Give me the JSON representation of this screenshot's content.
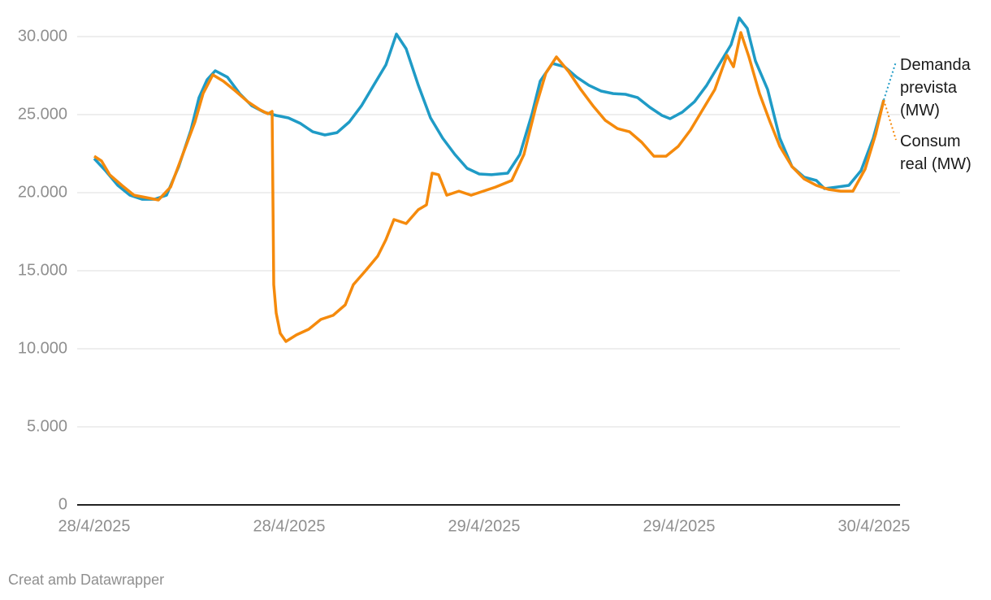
{
  "chart_data": {
    "type": "line",
    "credit": "Creat amb Datawrapper",
    "xlim": [
      -1.05,
      49.6
    ],
    "xticks": [
      {
        "value": 0,
        "label": "28/4/2025"
      },
      {
        "value": 12,
        "label": "28/4/2025"
      },
      {
        "value": 24,
        "label": "29/4/2025"
      },
      {
        "value": 36,
        "label": "29/4/2025"
      },
      {
        "value": 48,
        "label": "30/4/2025"
      }
    ],
    "ylim": [
      0,
      32000
    ],
    "yticks": [
      0,
      {
        "value": 5000,
        "label": "5.000"
      },
      {
        "value": 10000,
        "label": "10.000"
      },
      {
        "value": 15000,
        "label": "15.000"
      },
      {
        "value": 20000,
        "label": "20.000"
      },
      {
        "value": 25000,
        "label": "25.000"
      },
      {
        "value": 30000,
        "label": "30.000"
      }
    ],
    "grid": true,
    "series": [
      {
        "name": "Demanda prevista (MW)",
        "color": "#1f9bc6",
        "x": [
          0,
          0.7,
          1.45,
          2.2,
          2.95,
          3.7,
          4.45,
          5.2,
          5.95,
          6.45,
          6.95,
          7.45,
          8.2,
          8.95,
          9.7,
          10.45,
          11.2,
          11.95,
          12.7,
          13.45,
          14.2,
          14.95,
          15.7,
          16.45,
          17.2,
          17.95,
          18.6,
          19.2,
          19.95,
          20.7,
          21.45,
          22.2,
          22.95,
          23.7,
          24.45,
          25.45,
          26.2,
          26.95,
          27.45,
          28.2,
          28.95,
          29.7,
          30.45,
          31.2,
          31.95,
          32.7,
          33.45,
          34.2,
          34.95,
          35.45,
          36.2,
          36.95,
          37.7,
          38.45,
          39.2,
          39.7,
          40.2,
          40.7,
          41.45,
          42.2,
          42.95,
          43.7,
          44.45,
          44.95,
          45.7,
          46.45,
          47.2,
          47.95,
          48.6
        ],
        "values": [
          22190,
          21400,
          20470,
          19840,
          19580,
          19580,
          19840,
          21670,
          24010,
          26090,
          27240,
          27810,
          27400,
          26350,
          25570,
          25160,
          24950,
          24790,
          24430,
          23900,
          23700,
          23850,
          24530,
          25570,
          26880,
          28180,
          30160,
          29220,
          26880,
          24790,
          23490,
          22450,
          21560,
          21200,
          21150,
          21250,
          22450,
          25050,
          27140,
          28280,
          28070,
          27400,
          26880,
          26510,
          26350,
          26300,
          26090,
          25470,
          24950,
          24740,
          25160,
          25830,
          26880,
          28180,
          29480,
          31200,
          30520,
          28440,
          26610,
          23490,
          21670,
          20990,
          20780,
          20260,
          20360,
          20470,
          21410,
          23490,
          25940
        ]
      },
      {
        "name": "Consum real (MW)",
        "color": "#f58a0c",
        "x": [
          0,
          0.45,
          0.95,
          1.7,
          2.45,
          3.2,
          3.95,
          4.7,
          5.45,
          6.2,
          6.7,
          7.3,
          7.95,
          8.7,
          9.45,
          10.2,
          10.7,
          10.95,
          11.05,
          11.2,
          11.45,
          11.8,
          12.45,
          13.2,
          13.95,
          14.7,
          15.45,
          15.95,
          16.7,
          17.45,
          17.95,
          18.45,
          19.2,
          19.95,
          20.45,
          20.8,
          21.2,
          21.7,
          22.45,
          23.2,
          23.95,
          24.7,
          25.7,
          26.45,
          27.2,
          27.8,
          28.45,
          29.2,
          29.95,
          30.7,
          31.45,
          32.2,
          32.95,
          33.7,
          34.45,
          35.2,
          35.95,
          36.7,
          37.45,
          38.2,
          38.95,
          39.35,
          39.8,
          40.3,
          40.95,
          41.6,
          42.2,
          42.95,
          43.7,
          44.45,
          45.2,
          45.95,
          46.7,
          47.45,
          48.1,
          48.6
        ],
        "values": [
          22340,
          22030,
          21150,
          20470,
          19840,
          19690,
          19530,
          20360,
          22450,
          24530,
          26350,
          27550,
          27140,
          26510,
          25830,
          25310,
          25050,
          25210,
          14110,
          12290,
          10990,
          10470,
          10890,
          11250,
          11880,
          12140,
          12810,
          14110,
          15000,
          15940,
          16980,
          18280,
          18020,
          18910,
          19220,
          21250,
          21150,
          19840,
          20100,
          19840,
          20100,
          20360,
          20780,
          22450,
          25570,
          27660,
          28700,
          27760,
          26610,
          25570,
          24640,
          24110,
          23900,
          23230,
          22340,
          22340,
          22970,
          24010,
          25310,
          26610,
          28800,
          28070,
          30260,
          28700,
          26350,
          24530,
          22970,
          21670,
          20880,
          20470,
          20210,
          20100,
          20100,
          21510,
          23750,
          25940
        ]
      }
    ]
  }
}
